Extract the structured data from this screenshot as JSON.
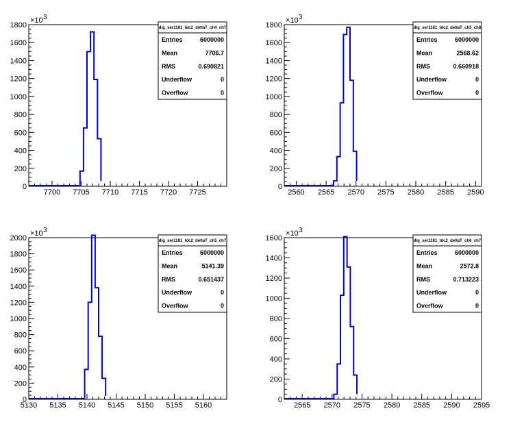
{
  "chart_data": [
    {
      "type": "histogram",
      "title": "dig_ser1181_tdc2_deltaT_ch4_ch7",
      "y_multiplier": "×10",
      "y_exponent": "3",
      "xlim": [
        7696,
        7730
      ],
      "ylim": [
        0,
        1800
      ],
      "x_ticks": [
        "7700",
        "7705",
        "7710",
        "7715",
        "7720",
        "7725"
      ],
      "x_tick_values": [
        7700,
        7705,
        7710,
        7715,
        7720,
        7725
      ],
      "y_ticks": [
        "0",
        "200",
        "400",
        "600",
        "800",
        "1000",
        "1200",
        "1400",
        "1600",
        "1800"
      ],
      "y_tick_values": [
        0,
        200,
        400,
        600,
        800,
        1000,
        1200,
        1400,
        1600,
        1800
      ],
      "bin_edges": [
        7704.8,
        7705.4,
        7706.0,
        7706.6,
        7707.2,
        7707.8,
        7708.4
      ],
      "values": [
        170,
        650,
        1500,
        1720,
        1190,
        530,
        60
      ],
      "stats": {
        "Entries": "6000000",
        "Mean": "7706.7",
        "RMS": "0.690821",
        "Underflow": "0",
        "Overflow": "0"
      }
    },
    {
      "type": "histogram",
      "title": "dig_ser1181_tdc2_deltaT_ch5_ch8",
      "y_multiplier": "×10",
      "y_exponent": "3",
      "xlim": [
        2558,
        2591
      ],
      "ylim": [
        0,
        1800
      ],
      "x_ticks": [
        "2560",
        "2565",
        "2570",
        "2575",
        "2580",
        "2585",
        "2590"
      ],
      "x_tick_values": [
        2560,
        2565,
        2570,
        2575,
        2580,
        2585,
        2590
      ],
      "y_ticks": [
        "0",
        "200",
        "400",
        "600",
        "800",
        "1000",
        "1200",
        "1400",
        "1600",
        "1800"
      ],
      "y_tick_values": [
        0,
        200,
        400,
        600,
        800,
        1000,
        1200,
        1400,
        1600,
        1800
      ],
      "bin_edges": [
        2566.25,
        2566.8,
        2567.35,
        2567.9,
        2568.45,
        2569.0,
        2569.55,
        2570.1
      ],
      "values": [
        60,
        330,
        930,
        1690,
        1770,
        1180,
        390,
        60
      ],
      "stats": {
        "Entries": "6000000",
        "Mean": "2568.62",
        "RMS": "0.660918",
        "Underflow": "0",
        "Overflow": "0"
      }
    },
    {
      "type": "histogram",
      "title": "dig_ser1181_tdc2_deltaT_ch5_ch7",
      "y_multiplier": "×10",
      "y_exponent": "3",
      "xlim": [
        5130,
        5164
      ],
      "ylim": [
        0,
        2000
      ],
      "x_ticks": [
        "5130",
        "5135",
        "5140",
        "5145",
        "5150",
        "5155",
        "5160"
      ],
      "x_tick_values": [
        5130,
        5135,
        5140,
        5145,
        5150,
        5155,
        5160
      ],
      "y_ticks": [
        "0",
        "200",
        "400",
        "600",
        "800",
        "1000",
        "1200",
        "1400",
        "1600",
        "1800",
        "2000"
      ],
      "y_tick_values": [
        0,
        200,
        400,
        600,
        800,
        1000,
        1200,
        1400,
        1600,
        1800,
        2000
      ],
      "bin_edges": [
        5139.6,
        5140.2,
        5140.8,
        5141.4,
        5142.0,
        5142.6,
        5143.2
      ],
      "values": [
        370,
        1200,
        2030,
        1380,
        780,
        260,
        40
      ],
      "stats": {
        "Entries": "6000000",
        "Mean": "5141.39",
        "RMS": "0.651437",
        "Underflow": "0",
        "Overflow": "0"
      }
    },
    {
      "type": "histogram",
      "title": "dig_ser1181_tdc2_deltaT_ch6_ch7",
      "y_multiplier": "×10",
      "y_exponent": "3",
      "xlim": [
        2562,
        2595
      ],
      "ylim": [
        0,
        1600
      ],
      "x_ticks": [
        "2565",
        "2570",
        "2575",
        "2580",
        "2585",
        "2590",
        "2595"
      ],
      "x_tick_values": [
        2565,
        2570,
        2575,
        2580,
        2585,
        2590,
        2595
      ],
      "y_ticks": [
        "0",
        "200",
        "400",
        "600",
        "800",
        "1000",
        "1200",
        "1400",
        "1600"
      ],
      "y_tick_values": [
        0,
        200,
        400,
        600,
        800,
        1000,
        1200,
        1400,
        1600
      ],
      "bin_edges": [
        2570.3,
        2570.85,
        2571.4,
        2571.95,
        2572.5,
        2573.05,
        2573.6,
        2574.15
      ],
      "values": [
        50,
        350,
        1030,
        1610,
        1310,
        720,
        240,
        50
      ],
      "stats": {
        "Entries": "6000000",
        "Mean": "2572.8",
        "RMS": "0.713223",
        "Underflow": "0",
        "Overflow": "0"
      }
    }
  ]
}
